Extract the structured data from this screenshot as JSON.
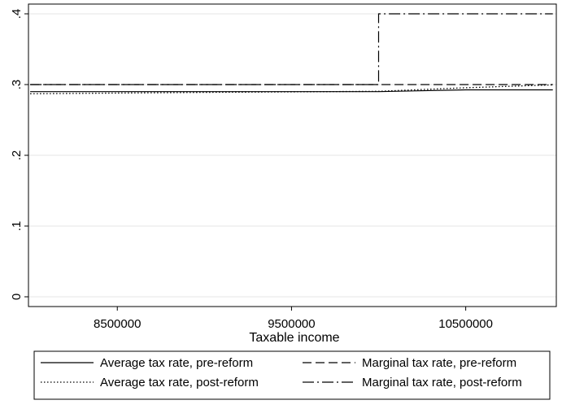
{
  "chart_data": {
    "type": "line",
    "title": "",
    "xlabel": "Taxable income",
    "ylabel": "",
    "xlim": [
      7990000,
      11020000
    ],
    "ylim": [
      0,
      0.4
    ],
    "xticks": [
      8500000,
      9500000,
      10500000
    ],
    "xtick_labels": [
      "8500000",
      "9500000",
      "10500000"
    ],
    "yticks": [
      0,
      0.1,
      0.2,
      0.3,
      0.4
    ],
    "ytick_labels": [
      "0",
      ".1",
      ".2",
      ".3",
      ".4"
    ],
    "grid": "horizontal",
    "legend_position": "bottom",
    "series": [
      {
        "name": "Average tax rate, pre-reform",
        "style": "solid",
        "x": [
          8000000,
          9000000,
          10000000,
          10500000,
          11000000
        ],
        "y": [
          0.29,
          0.29,
          0.29,
          0.2925,
          0.2925
        ]
      },
      {
        "name": "Marginal tax rate, pre-reform",
        "style": "dashed",
        "x": [
          8000000,
          9000000,
          10000000,
          10500000,
          11000000
        ],
        "y": [
          0.3,
          0.3,
          0.3,
          0.3,
          0.3
        ]
      },
      {
        "name": "Average tax rate, post-reform",
        "style": "dotted",
        "x": [
          8000000,
          9000000,
          10000000,
          10500000,
          11000000
        ],
        "y": [
          0.287,
          0.289,
          0.2905,
          0.2955,
          0.2995
        ]
      },
      {
        "name": "Marginal tax rate, post-reform",
        "style": "dashdot",
        "x": [
          8000000,
          10000000,
          10000000,
          11000000
        ],
        "y": [
          0.3,
          0.3,
          0.4,
          0.4
        ]
      }
    ],
    "legend_order": [
      0,
      1,
      2,
      3
    ]
  }
}
